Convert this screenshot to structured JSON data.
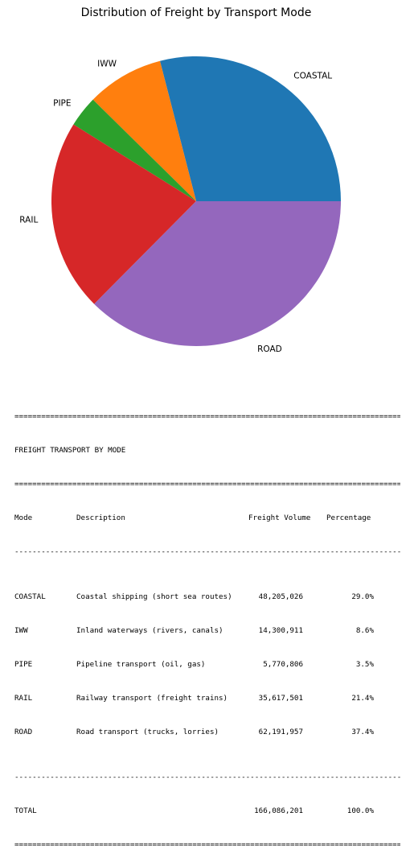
{
  "chart_data": {
    "type": "pie",
    "title": "Distribution of Freight by Transport Mode",
    "categories": [
      "COASTAL",
      "IWW",
      "PIPE",
      "RAIL",
      "ROAD"
    ],
    "values": [
      48205026,
      14300911,
      5770806,
      35617501,
      62191957
    ],
    "colors": [
      "#1f77b4",
      "#ff7f0e",
      "#2ca02c",
      "#d62728",
      "#9467bd"
    ],
    "start_angle_deg": 0,
    "direction": "counterclockwise"
  },
  "table": {
    "rule_double": "==========================================================================================",
    "rule_single": "------------------------------------------------------------------------------------------",
    "title": "FREIGHT TRANSPORT BY MODE",
    "headers": {
      "mode": "Mode",
      "description": "Description",
      "volume": "Freight Volume",
      "percentage": "Percentage"
    },
    "rows": [
      {
        "mode": "COASTAL",
        "description": "Coastal shipping (short sea routes)",
        "volume": "48,205,026",
        "percentage": "29.0%"
      },
      {
        "mode": "IWW",
        "description": "Inland waterways (rivers, canals)",
        "volume": "14,300,911",
        "percentage": "8.6%"
      },
      {
        "mode": "PIPE",
        "description": "Pipeline transport (oil, gas)",
        "volume": "5,770,806",
        "percentage": "3.5%"
      },
      {
        "mode": "RAIL",
        "description": "Railway transport (freight trains)",
        "volume": "35,617,501",
        "percentage": "21.4%"
      },
      {
        "mode": "ROAD",
        "description": "Road transport (trucks, lorries)",
        "volume": "62,191,957",
        "percentage": "37.4%"
      }
    ],
    "total": {
      "mode": "TOTAL",
      "volume": "166,086,201",
      "percentage": "100.0%"
    }
  }
}
